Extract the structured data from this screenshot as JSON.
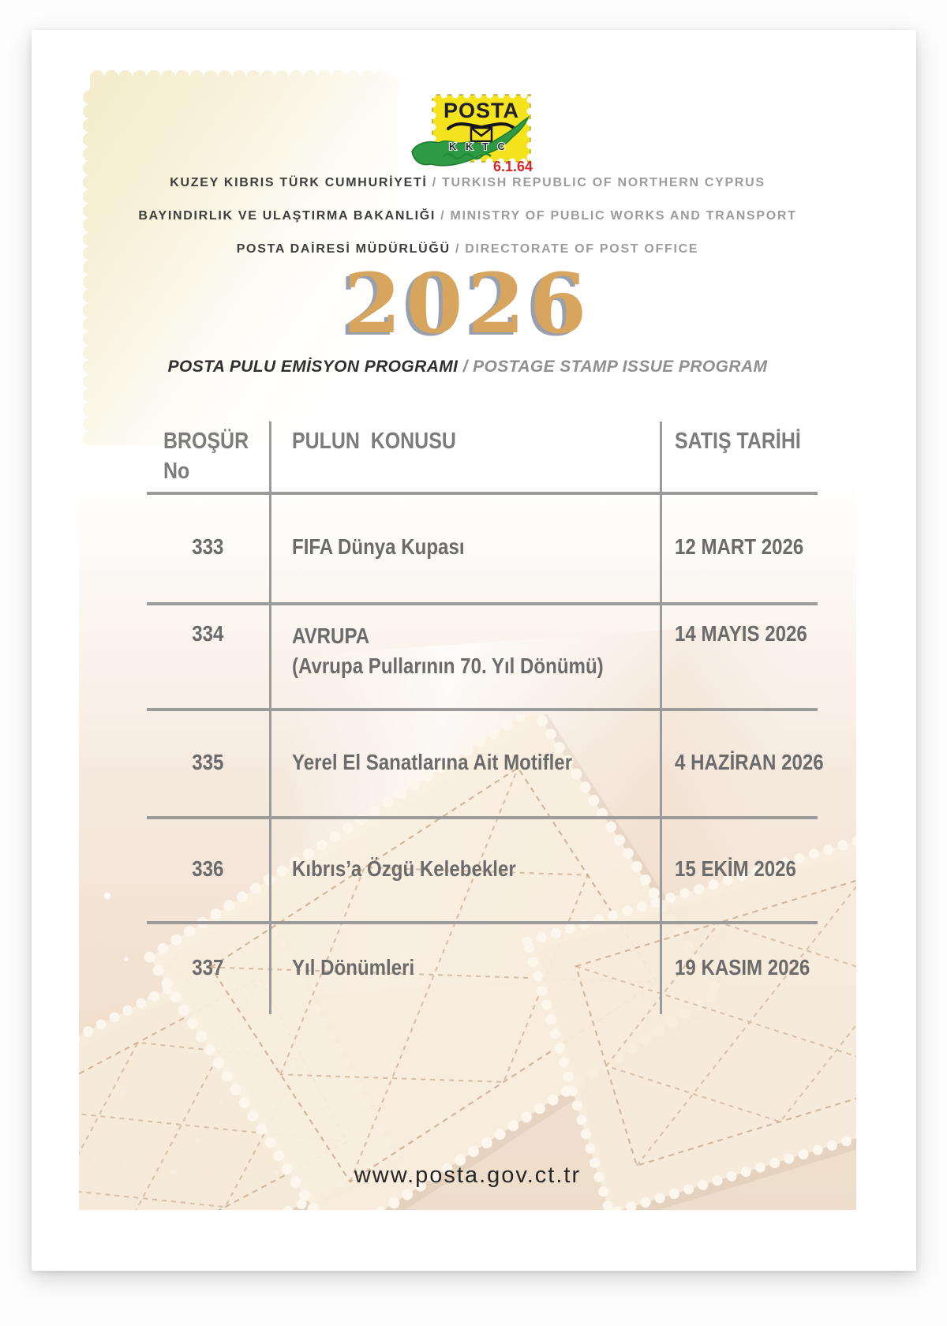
{
  "logo": {
    "posta_label": "POSTA",
    "kktc_label": "K K T C",
    "date_label": "6.1.64"
  },
  "header": {
    "lines": [
      {
        "tr": "KUZEY KIBRIS TÜRK CUMHURİYETİ",
        "sep": " / ",
        "en": "TURKISH REPUBLIC OF NORTHERN CYPRUS"
      },
      {
        "tr": "BAYINDIRLIK VE ULAŞTIRMA BAKANLIĞI",
        "sep": " / ",
        "en": "MINISTRY OF PUBLIC WORKS AND TRANSPORT"
      },
      {
        "tr": "POSTA DAİRESİ MÜDÜRLÜĞÜ",
        "sep": " / ",
        "en": "DIRECTORATE OF POST OFFICE"
      }
    ],
    "year": "2026",
    "subtitle_tr": "POSTA PULU EMİSYON PROGRAMI",
    "subtitle_sep": " / ",
    "subtitle_en": "POSTAGE STAMP ISSUE PROGRAM"
  },
  "table": {
    "columns": {
      "col1_line1": "BROŞÜR",
      "col1_line2": "No",
      "col2": "PULUN  KONUSU",
      "col3": "SATIŞ TARİHİ"
    },
    "rows": [
      {
        "no": "333",
        "topic": "FIFA Dünya Kupası",
        "topic2": "",
        "date": "12 MART 2026"
      },
      {
        "no": "334",
        "topic": "AVRUPA",
        "topic2": "(Avrupa Pullarının 70. Yıl Dönümü)",
        "date": "14 MAYIS 2026"
      },
      {
        "no": "335",
        "topic": "Yerel El Sanatlarına Ait Motifler",
        "topic2": "",
        "date": "4 HAZİRAN 2026"
      },
      {
        "no": "336",
        "topic": "Kıbrıs’a Özgü Kelebekler",
        "topic2": "",
        "date": "15 EKİM 2026"
      },
      {
        "no": "337",
        "topic": "Yıl Dönümleri",
        "topic2": "",
        "date": "19 KASIM 2026"
      }
    ]
  },
  "footer": {
    "website": "www.posta.gov.ct.tr"
  },
  "colors": {
    "year_gold": "#D7A55E",
    "table_line_gray": "#9b9b9b",
    "header_text_dark": "#3d3d3d",
    "header_text_gray": "#9b9b9b",
    "table_text_gray": "#6b6b6b",
    "logo_yellow": "#F4E31D",
    "logo_green": "#2E9B44",
    "logo_red": "#D62828"
  }
}
